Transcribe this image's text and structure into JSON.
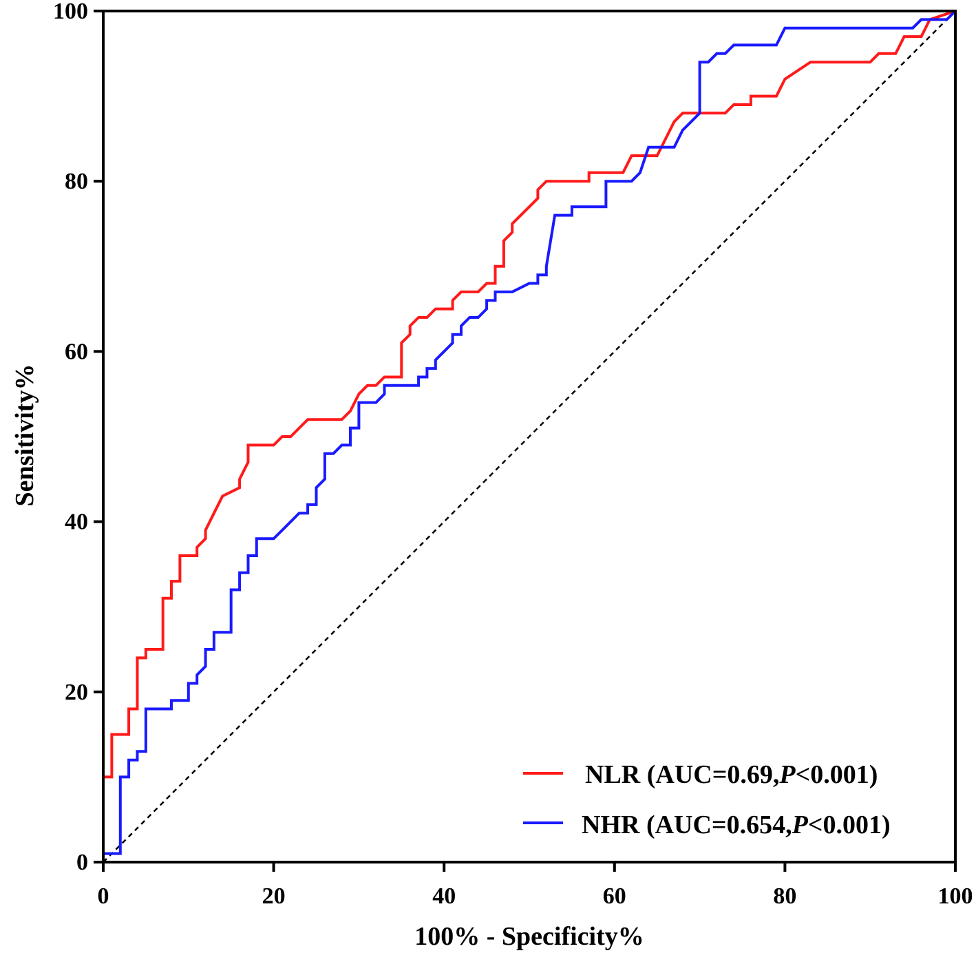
{
  "chart_data": {
    "type": "line",
    "title": "",
    "xlabel": "100% - Specificity%",
    "ylabel": "Sensitivity%",
    "xlim": [
      0,
      100
    ],
    "ylim": [
      0,
      100
    ],
    "xticks": [
      "0",
      "20",
      "40",
      "60",
      "80",
      "100"
    ],
    "yticks": [
      "0",
      "20",
      "40",
      "60",
      "80",
      "100"
    ],
    "grid": false,
    "legend_position": "bottom-right",
    "reference_line": {
      "name": "chance",
      "x": [
        0,
        100
      ],
      "y": [
        0,
        100
      ],
      "style": "dashed",
      "color": "#000000"
    },
    "series": [
      {
        "name": "NLR",
        "legend": {
          "prefix": "NLR (AUC=0.69,",
          "p_label": "P",
          "suffix": "<0.001)"
        },
        "color": "#ff1a1a",
        "x": [
          0,
          0,
          1,
          1,
          3,
          3,
          4,
          4,
          5,
          5,
          6,
          7,
          7,
          8,
          8,
          9,
          9,
          11,
          11,
          12,
          12,
          13,
          14,
          14,
          16,
          16,
          17,
          17,
          19,
          20,
          21,
          22,
          23,
          23,
          24,
          25,
          28,
          29,
          30,
          31,
          31,
          32,
          33,
          35,
          35,
          36,
          36,
          37,
          38,
          39,
          40,
          41,
          41,
          42,
          43,
          44,
          45,
          46,
          46,
          47,
          47,
          48,
          48,
          49,
          50,
          50,
          51,
          51,
          52,
          53,
          57,
          57,
          61,
          62,
          64,
          65,
          67,
          68,
          70,
          72,
          73,
          74,
          76,
          76,
          78,
          79,
          80,
          83,
          85,
          87,
          90,
          91,
          93,
          94,
          96,
          97,
          100
        ],
        "y": [
          0,
          10,
          10,
          15,
          15,
          18,
          18,
          24,
          24,
          25,
          25,
          25,
          31,
          31,
          33,
          33,
          36,
          36,
          37,
          38,
          39,
          41,
          43,
          43,
          44,
          45,
          47,
          49,
          49,
          49,
          50,
          50,
          51,
          51,
          52,
          52,
          52,
          53,
          55,
          56,
          56,
          56,
          57,
          57,
          61,
          62,
          63,
          64,
          64,
          65,
          65,
          65,
          66,
          67,
          67,
          67,
          68,
          68,
          70,
          70,
          73,
          74,
          75,
          76,
          77,
          77,
          78,
          79,
          80,
          80,
          80,
          81,
          81,
          83,
          83,
          83,
          87,
          88,
          88,
          88,
          88,
          89,
          89,
          90,
          90,
          90,
          92,
          94,
          94,
          94,
          94,
          95,
          95,
          97,
          97,
          99,
          100
        ]
      },
      {
        "name": "NHR",
        "legend": {
          "prefix": "NHR (AUC=0.654,",
          "p_label": "P",
          "suffix": "<0.001)"
        },
        "color": "#1a1aff",
        "x": [
          0,
          0,
          1,
          2,
          2,
          3,
          3,
          4,
          4,
          5,
          5,
          6,
          8,
          8,
          10,
          10,
          11,
          11,
          12,
          12,
          13,
          13,
          15,
          15,
          16,
          16,
          17,
          17,
          18,
          18,
          20,
          21,
          23,
          24,
          24,
          25,
          25,
          26,
          26,
          27,
          28,
          29,
          29,
          30,
          30,
          32,
          33,
          33,
          36,
          37,
          37,
          38,
          38,
          39,
          39,
          40,
          41,
          41,
          42,
          42,
          43,
          44,
          45,
          45,
          46,
          46,
          48,
          50,
          51,
          51,
          52,
          52,
          53,
          54,
          55,
          55,
          59,
          59,
          62,
          63,
          63,
          64,
          65,
          66,
          67,
          68,
          69,
          70,
          70,
          71,
          72,
          73,
          74,
          79,
          80,
          95,
          96,
          99,
          100
        ],
        "y": [
          0,
          1,
          1,
          1,
          10,
          10,
          12,
          12,
          13,
          13,
          18,
          18,
          18,
          19,
          19,
          21,
          21,
          22,
          23,
          25,
          25,
          27,
          27,
          32,
          32,
          34,
          34,
          36,
          36,
          38,
          38,
          39,
          41,
          41,
          42,
          42,
          44,
          45,
          48,
          48,
          49,
          49,
          51,
          51,
          54,
          54,
          55,
          56,
          56,
          56,
          57,
          57,
          58,
          58,
          59,
          60,
          61,
          62,
          62,
          63,
          64,
          64,
          65,
          66,
          66,
          67,
          67,
          68,
          68,
          69,
          69,
          70,
          76,
          76,
          76,
          77,
          77,
          80,
          80,
          81,
          81,
          84,
          84,
          84,
          84,
          86,
          87,
          88,
          94,
          94,
          95,
          95,
          96,
          96,
          98,
          98,
          99,
          99,
          100
        ]
      }
    ]
  }
}
